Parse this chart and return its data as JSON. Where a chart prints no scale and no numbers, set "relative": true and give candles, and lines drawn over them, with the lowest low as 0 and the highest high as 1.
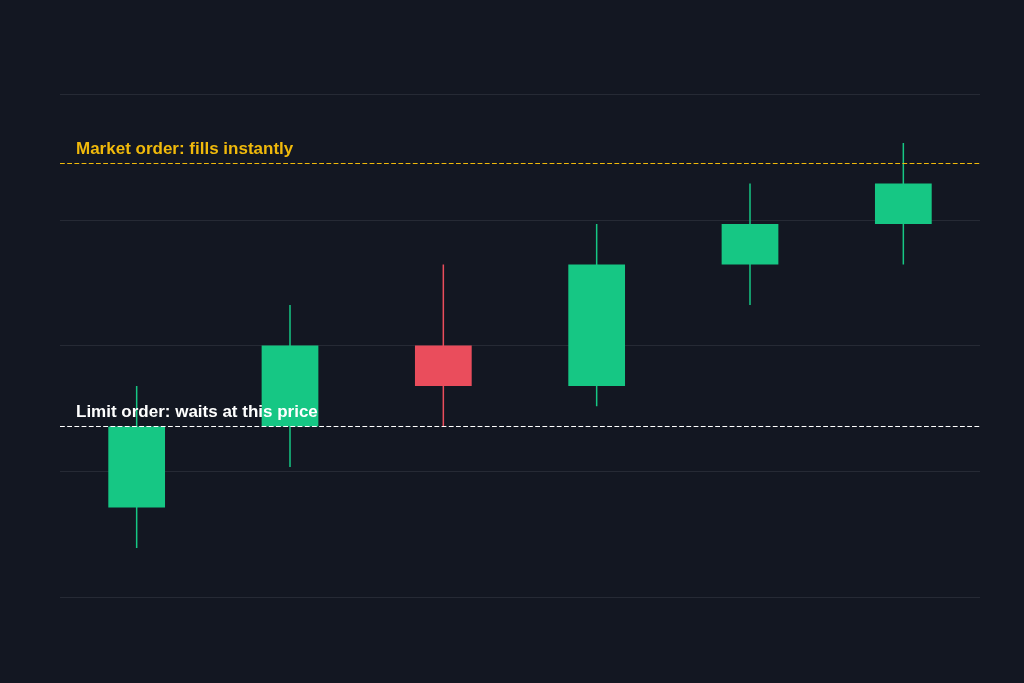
{
  "chart_data": {
    "type": "candlestick",
    "relative": true,
    "categories": [
      null,
      null,
      null,
      null,
      null,
      null
    ],
    "ohlc": [
      [
        0.1,
        0.4,
        0,
        0.3
      ],
      [
        0.3,
        0.6,
        0.2,
        0.5
      ],
      [
        0.5,
        0.7,
        0.3,
        0.4
      ],
      [
        0.4,
        0.8,
        0.35,
        0.7
      ],
      [
        0.7,
        0.9,
        0.6,
        0.8
      ],
      [
        0.8,
        1,
        0.7,
        0.9
      ]
    ],
    "colors": [
      "#16c784",
      "#16c784",
      "#ea4d5c",
      "#16c784",
      "#16c784",
      "#16c784"
    ],
    "ref_lines": [
      {
        "axis": "y",
        "value": 0.95,
        "label": "Market order: fills instantly",
        "color": "#f0b90b",
        "line_style": "dashed"
      },
      {
        "axis": "y",
        "value": 0.3,
        "label": "Limit order: waits at this price",
        "color": "#ffffff",
        "line_style": "dashed"
      }
    ],
    "grid": "y"
  }
}
